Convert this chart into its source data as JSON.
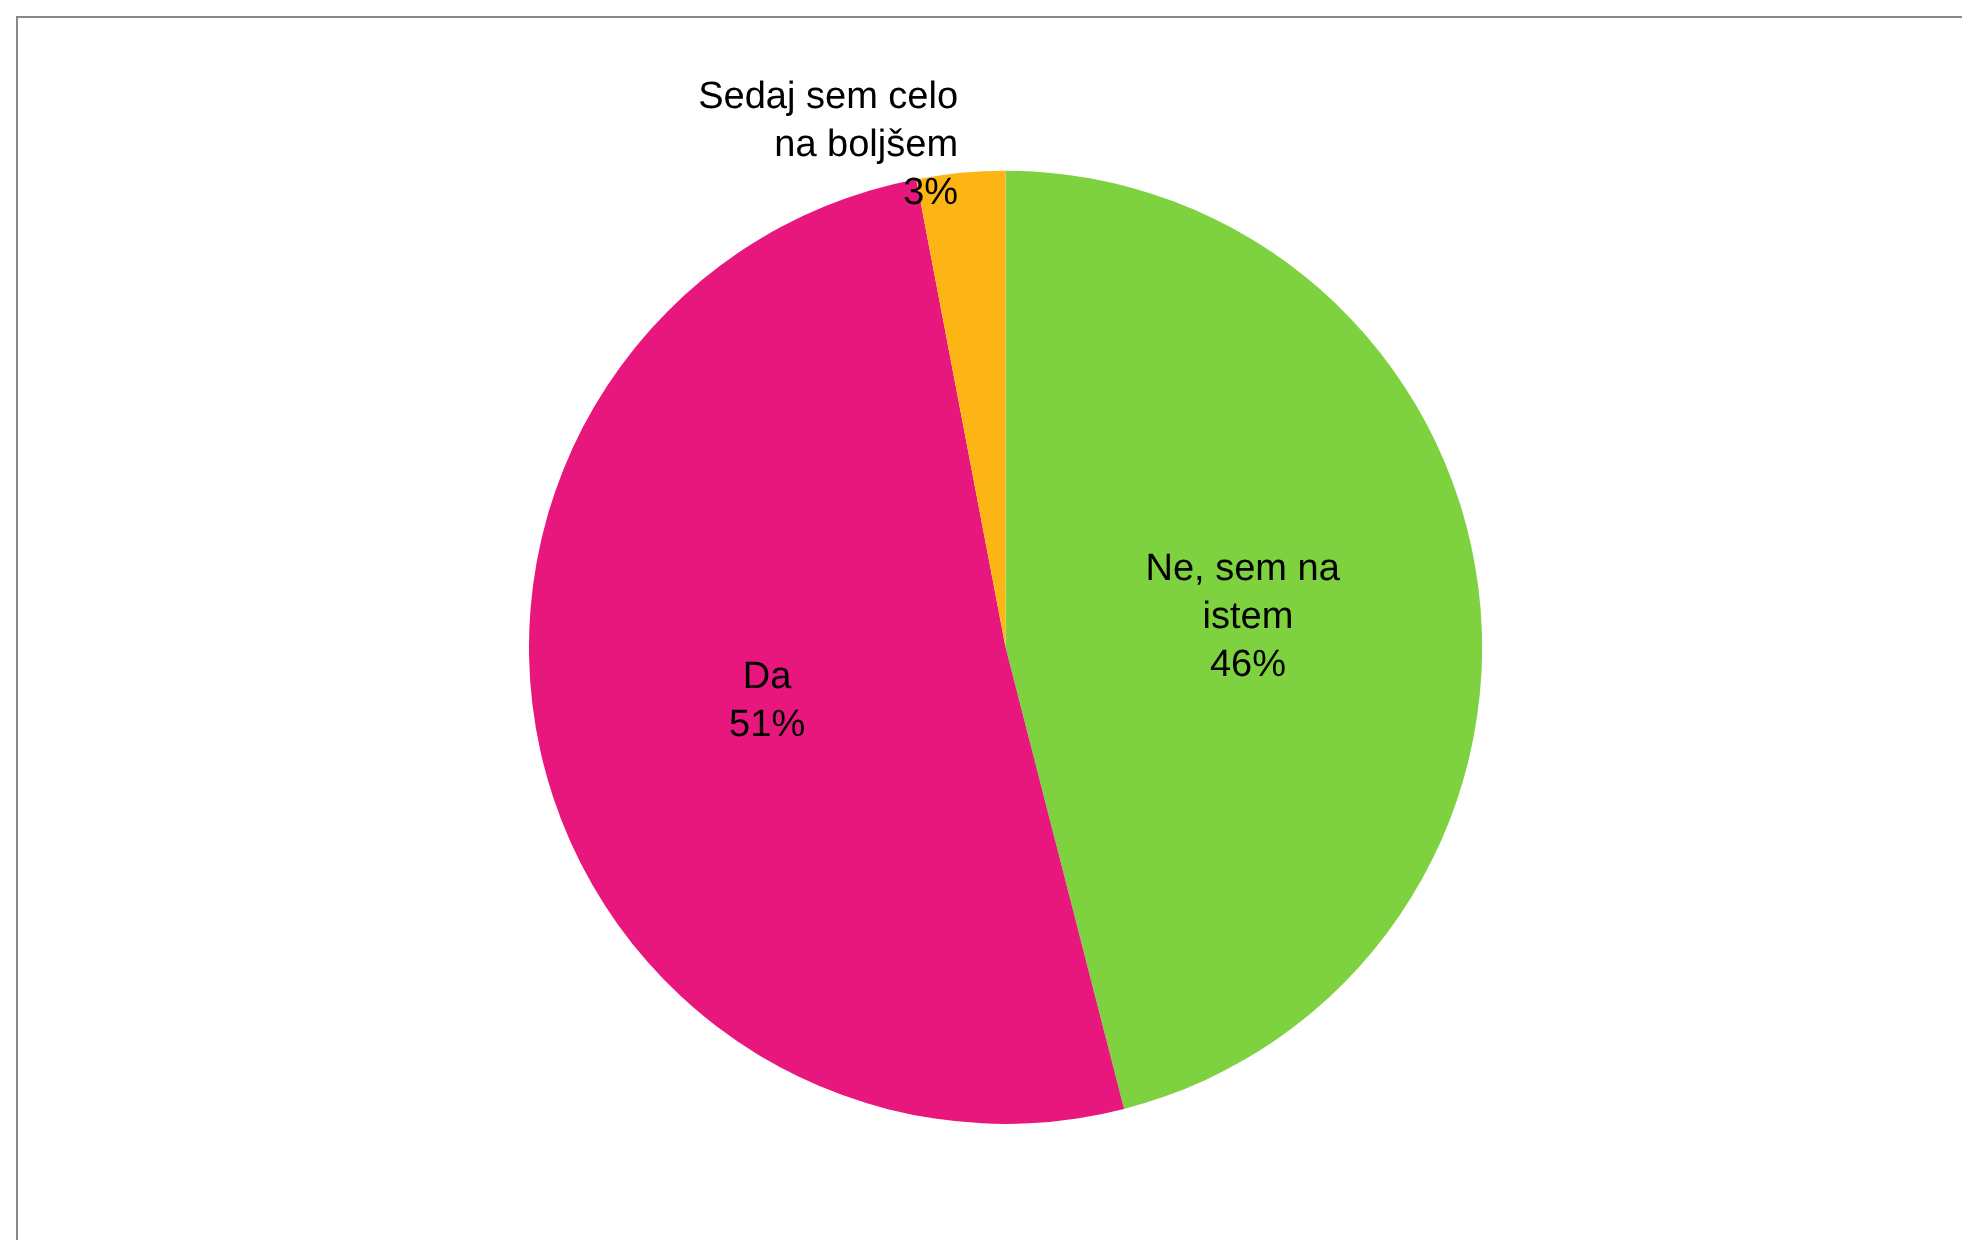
{
  "chart_data": {
    "type": "pie",
    "categories": [
      "Ne, sem na istem",
      "Da",
      "Sedaj sem celo na boljšem"
    ],
    "values": [
      46,
      51,
      3
    ],
    "colors": [
      "#7ed13f",
      "#e8177d",
      "#fdb515"
    ],
    "value_labels": [
      "46%",
      "51%",
      "3%"
    ],
    "legend": false
  }
}
